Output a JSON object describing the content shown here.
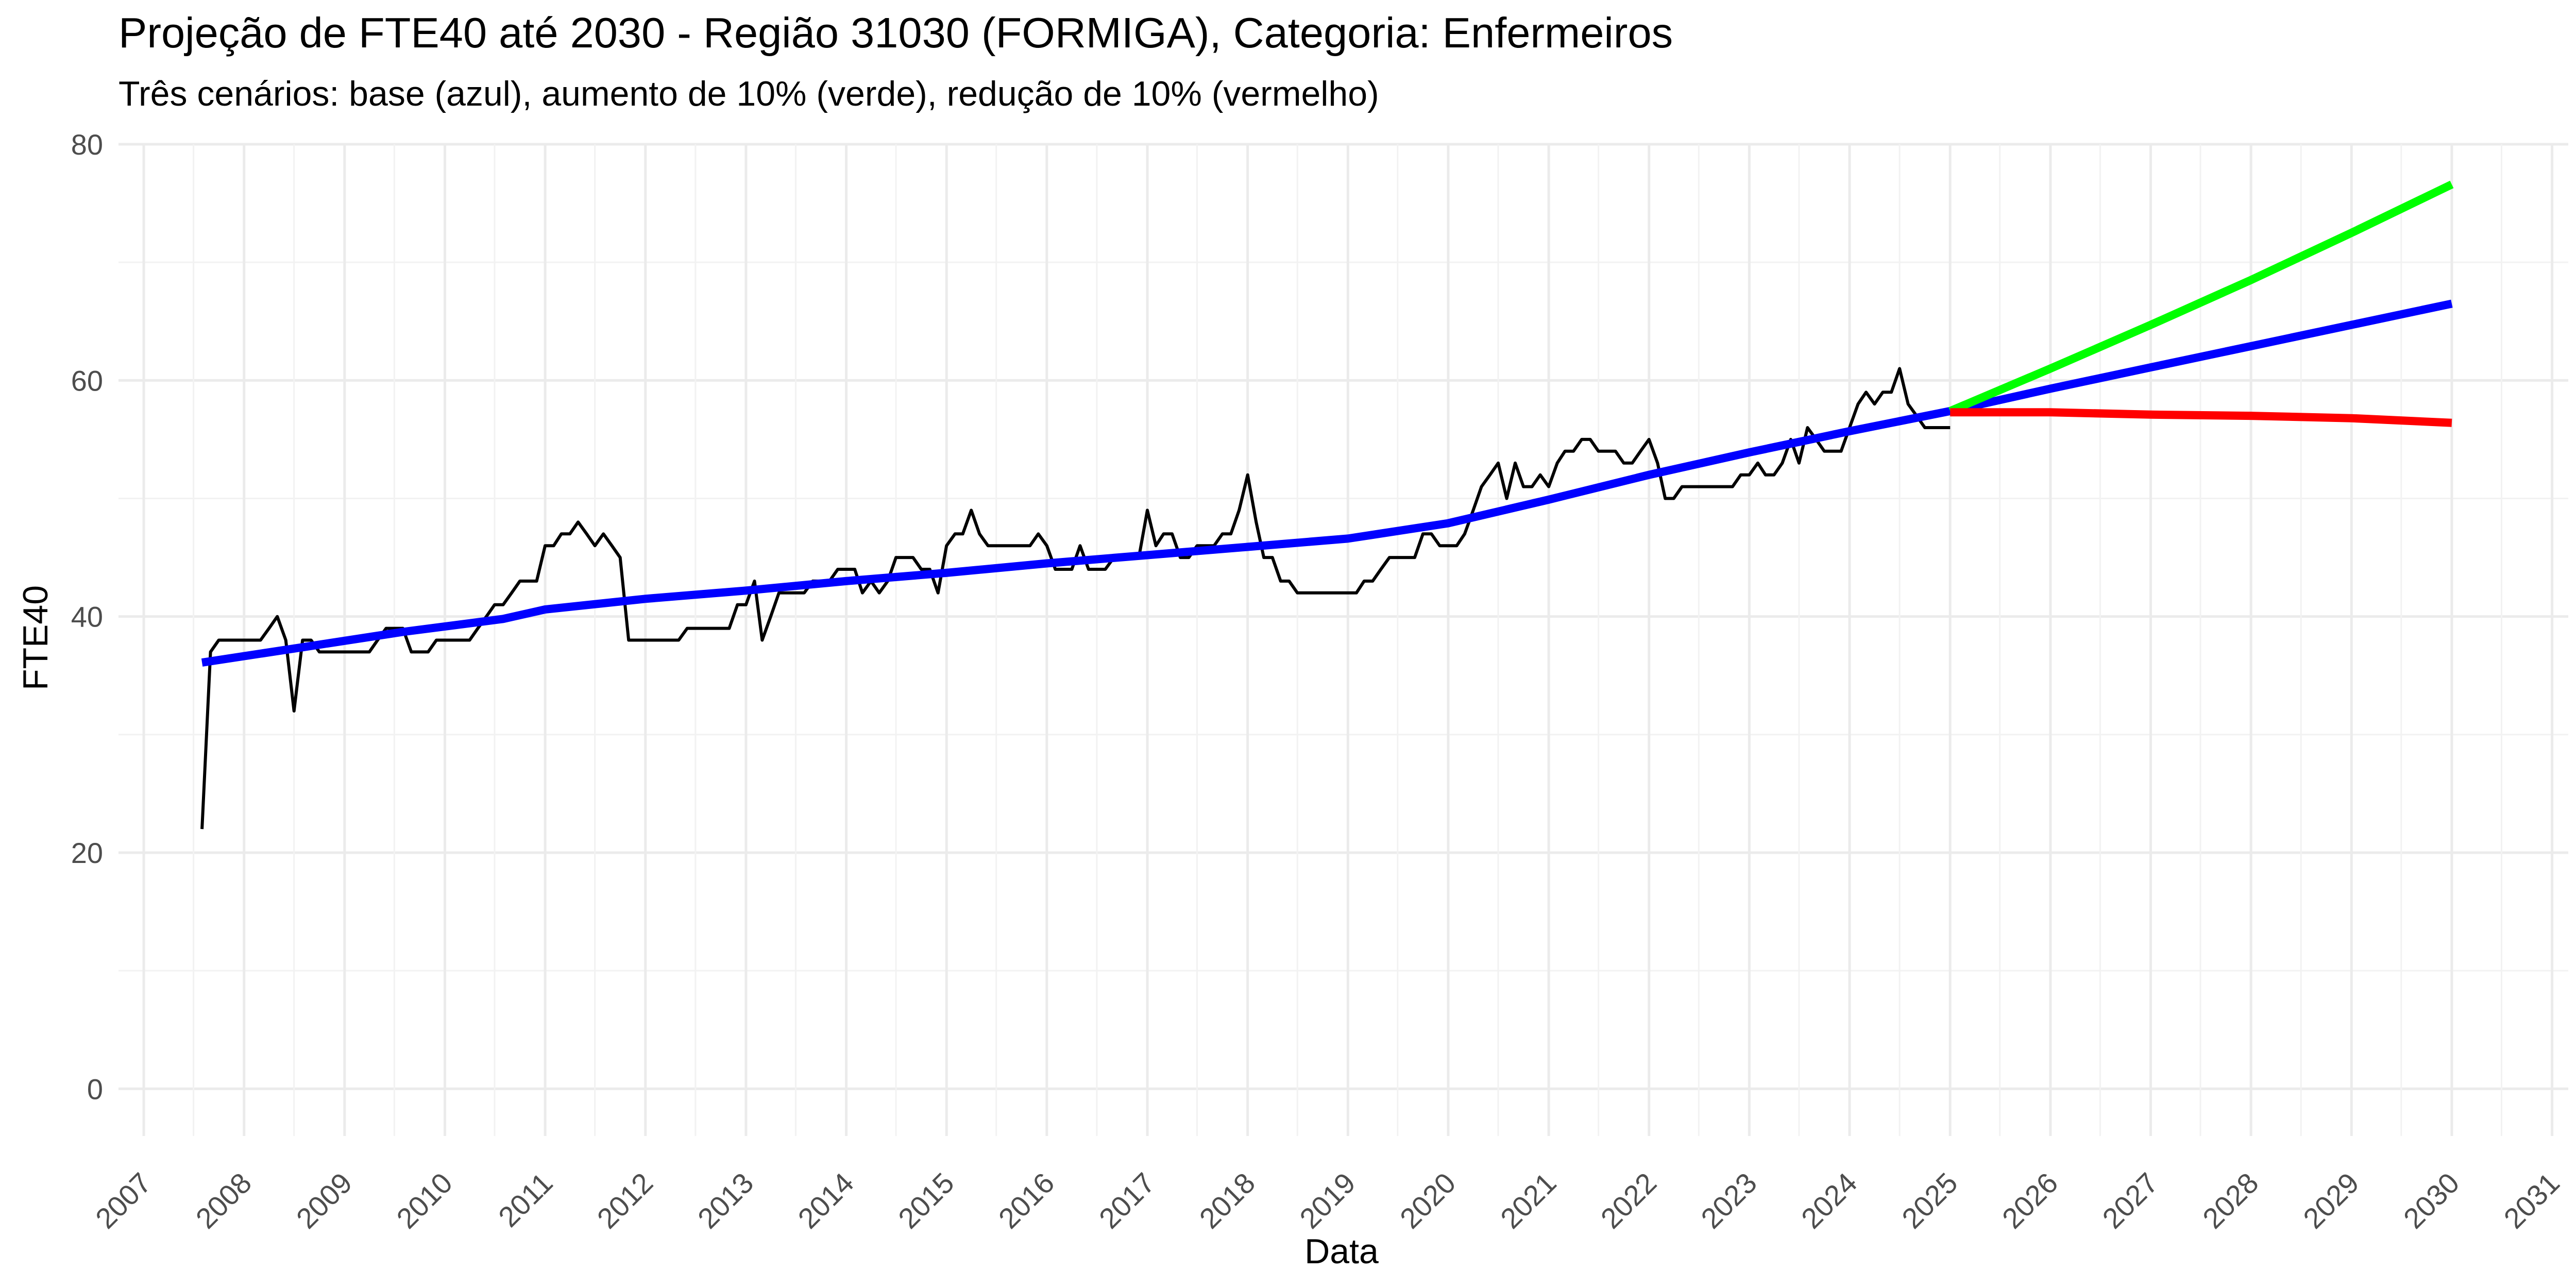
{
  "chart_data": {
    "type": "line",
    "title": "Projeção de FTE40 até 2030 - Região 31030 (FORMIGA), Categoria: Enfermeiros",
    "subtitle": "Três cenários: base (azul), aumento de 10% (verde), redução de 10% (vermelho)",
    "xlabel": "Data",
    "ylabel": "FTE40",
    "xlim": [
      "2006-10-01",
      "2031-03-01"
    ],
    "ylim": [
      -4,
      80
    ],
    "x_ticks": [
      "2007",
      "2008",
      "2009",
      "2010",
      "2011",
      "2012",
      "2013",
      "2014",
      "2015",
      "2016",
      "2017",
      "2018",
      "2019",
      "2020",
      "2021",
      "2022",
      "2023",
      "2024",
      "2025",
      "2026",
      "2027",
      "2028",
      "2029",
      "2030",
      "2031"
    ],
    "y_ticks": [
      0,
      20,
      40,
      60,
      80
    ],
    "grid": true,
    "legend": "none",
    "series": [
      {
        "color": "#000000",
        "values": [
          [
            "2007-08-01",
            22
          ],
          [
            "2007-09-01",
            37
          ],
          [
            "2007-10-01",
            38
          ],
          [
            "2007-11-01",
            38
          ],
          [
            "2007-12-01",
            38
          ],
          [
            "2008-01-01",
            38
          ],
          [
            "2008-02-01",
            38
          ],
          [
            "2008-03-01",
            38
          ],
          [
            "2008-04-01",
            39
          ],
          [
            "2008-05-01",
            40
          ],
          [
            "2008-06-01",
            38
          ],
          [
            "2008-07-01",
            32
          ],
          [
            "2008-08-01",
            38
          ],
          [
            "2008-09-01",
            38
          ],
          [
            "2008-10-01",
            37
          ],
          [
            "2008-11-01",
            37
          ],
          [
            "2008-12-01",
            37
          ],
          [
            "2009-01-01",
            37
          ],
          [
            "2009-02-01",
            37
          ],
          [
            "2009-03-01",
            37
          ],
          [
            "2009-04-01",
            37
          ],
          [
            "2009-05-01",
            38
          ],
          [
            "2009-06-01",
            39
          ],
          [
            "2009-07-01",
            39
          ],
          [
            "2009-08-01",
            39
          ],
          [
            "2009-09-01",
            37
          ],
          [
            "2009-10-01",
            37
          ],
          [
            "2009-11-01",
            37
          ],
          [
            "2009-12-01",
            38
          ],
          [
            "2010-01-01",
            38
          ],
          [
            "2010-02-01",
            38
          ],
          [
            "2010-03-01",
            38
          ],
          [
            "2010-04-01",
            38
          ],
          [
            "2010-05-01",
            39
          ],
          [
            "2010-06-01",
            40
          ],
          [
            "2010-07-01",
            41
          ],
          [
            "2010-08-01",
            41
          ],
          [
            "2010-09-01",
            42
          ],
          [
            "2010-10-01",
            43
          ],
          [
            "2010-11-01",
            43
          ],
          [
            "2010-12-01",
            43
          ],
          [
            "2011-01-01",
            46
          ],
          [
            "2011-02-01",
            46
          ],
          [
            "2011-03-01",
            47
          ],
          [
            "2011-04-01",
            47
          ],
          [
            "2011-05-01",
            48
          ],
          [
            "2011-06-01",
            47
          ],
          [
            "2011-07-01",
            46
          ],
          [
            "2011-08-01",
            47
          ],
          [
            "2011-09-01",
            46
          ],
          [
            "2011-10-01",
            45
          ],
          [
            "2011-11-01",
            38
          ],
          [
            "2011-12-01",
            38
          ],
          [
            "2012-01-01",
            38
          ],
          [
            "2012-02-01",
            38
          ],
          [
            "2012-03-01",
            38
          ],
          [
            "2012-04-01",
            38
          ],
          [
            "2012-05-01",
            38
          ],
          [
            "2012-06-01",
            39
          ],
          [
            "2012-07-01",
            39
          ],
          [
            "2012-08-01",
            39
          ],
          [
            "2012-09-01",
            39
          ],
          [
            "2012-10-01",
            39
          ],
          [
            "2012-11-01",
            39
          ],
          [
            "2012-12-01",
            41
          ],
          [
            "2013-01-01",
            41
          ],
          [
            "2013-02-01",
            43
          ],
          [
            "2013-03-01",
            38
          ],
          [
            "2013-04-01",
            40
          ],
          [
            "2013-05-01",
            42
          ],
          [
            "2013-06-01",
            42
          ],
          [
            "2013-07-01",
            42
          ],
          [
            "2013-08-01",
            42
          ],
          [
            "2013-09-01",
            43
          ],
          [
            "2013-10-01",
            43
          ],
          [
            "2013-11-01",
            43
          ],
          [
            "2013-12-01",
            44
          ],
          [
            "2014-01-01",
            44
          ],
          [
            "2014-02-01",
            44
          ],
          [
            "2014-03-01",
            42
          ],
          [
            "2014-04-01",
            43
          ],
          [
            "2014-05-01",
            42
          ],
          [
            "2014-06-01",
            43
          ],
          [
            "2014-07-01",
            45
          ],
          [
            "2014-08-01",
            45
          ],
          [
            "2014-09-01",
            45
          ],
          [
            "2014-10-01",
            44
          ],
          [
            "2014-11-01",
            44
          ],
          [
            "2014-12-01",
            42
          ],
          [
            "2015-01-01",
            46
          ],
          [
            "2015-02-01",
            47
          ],
          [
            "2015-03-01",
            47
          ],
          [
            "2015-04-01",
            49
          ],
          [
            "2015-05-01",
            47
          ],
          [
            "2015-06-01",
            46
          ],
          [
            "2015-07-01",
            46
          ],
          [
            "2015-08-01",
            46
          ],
          [
            "2015-09-01",
            46
          ],
          [
            "2015-10-01",
            46
          ],
          [
            "2015-11-01",
            46
          ],
          [
            "2015-12-01",
            47
          ],
          [
            "2016-01-01",
            46
          ],
          [
            "2016-02-01",
            44
          ],
          [
            "2016-03-01",
            44
          ],
          [
            "2016-04-01",
            44
          ],
          [
            "2016-05-01",
            46
          ],
          [
            "2016-06-01",
            44
          ],
          [
            "2016-07-01",
            44
          ],
          [
            "2016-08-01",
            44
          ],
          [
            "2016-09-01",
            45
          ],
          [
            "2016-10-01",
            45
          ],
          [
            "2016-11-01",
            45
          ],
          [
            "2016-12-01",
            45
          ],
          [
            "2017-01-01",
            49
          ],
          [
            "2017-02-01",
            46
          ],
          [
            "2017-03-01",
            47
          ],
          [
            "2017-04-01",
            47
          ],
          [
            "2017-05-01",
            45
          ],
          [
            "2017-06-01",
            45
          ],
          [
            "2017-07-01",
            46
          ],
          [
            "2017-08-01",
            46
          ],
          [
            "2017-09-01",
            46
          ],
          [
            "2017-10-01",
            47
          ],
          [
            "2017-11-01",
            47
          ],
          [
            "2017-12-01",
            49
          ],
          [
            "2018-01-01",
            52
          ],
          [
            "2018-02-01",
            48
          ],
          [
            "2018-03-01",
            45
          ],
          [
            "2018-04-01",
            45
          ],
          [
            "2018-05-01",
            43
          ],
          [
            "2018-06-01",
            43
          ],
          [
            "2018-07-01",
            42
          ],
          [
            "2018-08-01",
            42
          ],
          [
            "2018-09-01",
            42
          ],
          [
            "2018-10-01",
            42
          ],
          [
            "2018-11-01",
            42
          ],
          [
            "2018-12-01",
            42
          ],
          [
            "2019-01-01",
            42
          ],
          [
            "2019-02-01",
            42
          ],
          [
            "2019-03-01",
            43
          ],
          [
            "2019-04-01",
            43
          ],
          [
            "2019-05-01",
            44
          ],
          [
            "2019-06-01",
            45
          ],
          [
            "2019-07-01",
            45
          ],
          [
            "2019-08-01",
            45
          ],
          [
            "2019-09-01",
            45
          ],
          [
            "2019-10-01",
            47
          ],
          [
            "2019-11-01",
            47
          ],
          [
            "2019-12-01",
            46
          ],
          [
            "2020-01-01",
            46
          ],
          [
            "2020-02-01",
            46
          ],
          [
            "2020-03-01",
            47
          ],
          [
            "2020-04-01",
            49
          ],
          [
            "2020-05-01",
            51
          ],
          [
            "2020-06-01",
            52
          ],
          [
            "2020-07-01",
            53
          ],
          [
            "2020-08-01",
            50
          ],
          [
            "2020-09-01",
            53
          ],
          [
            "2020-10-01",
            51
          ],
          [
            "2020-11-01",
            51
          ],
          [
            "2020-12-01",
            52
          ],
          [
            "2021-01-01",
            51
          ],
          [
            "2021-02-01",
            53
          ],
          [
            "2021-03-01",
            54
          ],
          [
            "2021-04-01",
            54
          ],
          [
            "2021-05-01",
            55
          ],
          [
            "2021-06-01",
            55
          ],
          [
            "2021-07-01",
            54
          ],
          [
            "2021-08-01",
            54
          ],
          [
            "2021-09-01",
            54
          ],
          [
            "2021-10-01",
            53
          ],
          [
            "2021-11-01",
            53
          ],
          [
            "2021-12-01",
            54
          ],
          [
            "2022-01-01",
            55
          ],
          [
            "2022-02-01",
            53
          ],
          [
            "2022-03-01",
            50
          ],
          [
            "2022-04-01",
            50
          ],
          [
            "2022-05-01",
            51
          ],
          [
            "2022-06-01",
            51
          ],
          [
            "2022-07-01",
            51
          ],
          [
            "2022-08-01",
            51
          ],
          [
            "2022-09-01",
            51
          ],
          [
            "2022-10-01",
            51
          ],
          [
            "2022-11-01",
            51
          ],
          [
            "2022-12-01",
            52
          ],
          [
            "2023-01-01",
            52
          ],
          [
            "2023-02-01",
            53
          ],
          [
            "2023-03-01",
            52
          ],
          [
            "2023-04-01",
            52
          ],
          [
            "2023-05-01",
            53
          ],
          [
            "2023-06-01",
            55
          ],
          [
            "2023-07-01",
            53
          ],
          [
            "2023-08-01",
            56
          ],
          [
            "2023-09-01",
            55
          ],
          [
            "2023-10-01",
            54
          ],
          [
            "2023-11-01",
            54
          ],
          [
            "2023-12-01",
            54
          ],
          [
            "2024-01-01",
            56
          ],
          [
            "2024-02-01",
            58
          ],
          [
            "2024-03-01",
            59
          ],
          [
            "2024-04-01",
            58
          ],
          [
            "2024-05-01",
            59
          ],
          [
            "2024-06-01",
            59
          ],
          [
            "2024-07-01",
            61
          ],
          [
            "2024-08-01",
            58
          ],
          [
            "2024-09-01",
            57
          ],
          [
            "2024-10-01",
            56
          ],
          [
            "2024-11-01",
            56
          ],
          [
            "2024-12-01",
            56
          ],
          [
            "2025-01-01",
            56
          ]
        ]
      },
      {
        "color": "#0000ff",
        "values": [
          [
            "2007-08-01",
            36.1
          ],
          [
            "2008-08-01",
            37.4
          ],
          [
            "2009-08-01",
            38.7
          ],
          [
            "2010-08-01",
            39.8
          ],
          [
            "2011-01-01",
            40.6
          ],
          [
            "2012-01-01",
            41.5
          ],
          [
            "2013-01-01",
            42.2
          ],
          [
            "2014-01-01",
            43.0
          ],
          [
            "2015-01-01",
            43.7
          ],
          [
            "2016-01-01",
            44.5
          ],
          [
            "2017-01-01",
            45.2
          ],
          [
            "2018-01-01",
            45.9
          ],
          [
            "2019-01-01",
            46.6
          ],
          [
            "2020-01-01",
            47.9
          ],
          [
            "2021-01-01",
            49.9
          ],
          [
            "2022-01-01",
            52.0
          ],
          [
            "2023-01-01",
            53.9
          ],
          [
            "2024-01-01",
            55.7
          ],
          [
            "2025-01-01",
            57.4
          ],
          [
            "2026-01-01",
            59.3
          ],
          [
            "2027-01-01",
            61.1
          ],
          [
            "2028-01-01",
            62.9
          ],
          [
            "2029-01-01",
            64.7
          ],
          [
            "2030-01-01",
            66.5
          ]
        ]
      },
      {
        "color": "#00ff00",
        "values": [
          [
            "2025-01-01",
            57.4
          ],
          [
            "2026-01-01",
            61.0
          ],
          [
            "2027-01-01",
            64.7
          ],
          [
            "2028-01-01",
            68.5
          ],
          [
            "2029-01-01",
            72.5
          ],
          [
            "2030-01-01",
            76.6
          ]
        ]
      },
      {
        "color": "#ff0000",
        "values": [
          [
            "2025-01-01",
            57.3
          ],
          [
            "2026-01-01",
            57.3
          ],
          [
            "2027-01-01",
            57.1
          ],
          [
            "2028-01-01",
            57.0
          ],
          [
            "2029-01-01",
            56.8
          ],
          [
            "2030-01-01",
            56.4
          ]
        ]
      }
    ]
  }
}
